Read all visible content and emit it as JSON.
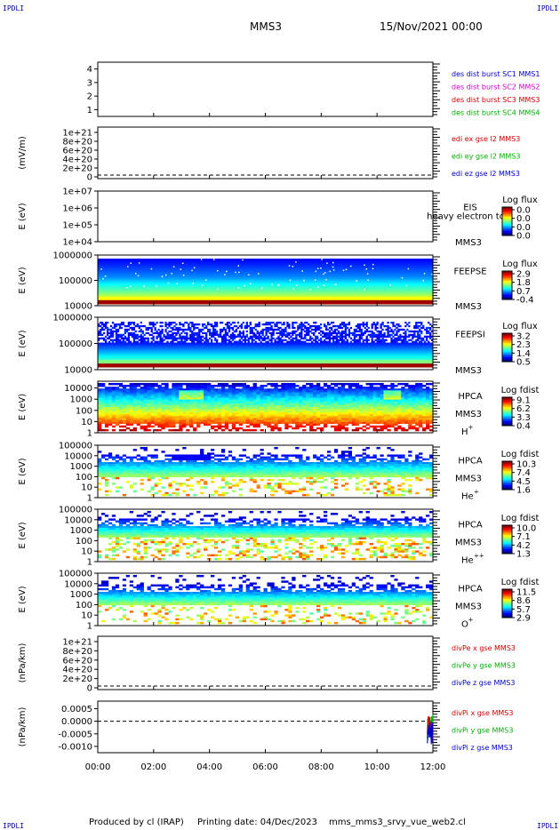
{
  "header": {
    "corner_label": "IPDLI",
    "spacecraft": "MMS3",
    "date": "15/Nov/2021 00:00"
  },
  "footer": {
    "produced_by": "Produced by cl (IRAP)",
    "printing_date": "Printing date: 04/Dec/2023",
    "file": "mms_mms3_srvy_vue_web2.cl"
  },
  "colors": {
    "mms1": "#0000c8",
    "mms2": "#d000d0",
    "mms3": "#d00000",
    "mms4": "#00b000",
    "x": "#d00000",
    "y": "#00b000",
    "z": "#0000c8"
  },
  "chart_data": [
    {
      "type": "line",
      "panel": "mms-indicator",
      "yticks": [
        "4",
        "3",
        "2",
        "1"
      ],
      "ylim": [
        0.5,
        4.5
      ],
      "legend": [
        {
          "text": "des dist burst SC1 MMS1",
          "color": "#0000c8"
        },
        {
          "text": "des dist burst SC2 MMS2",
          "color": "#d000d0"
        },
        {
          "text": "des dist burst SC3 MMS3",
          "color": "#d00000"
        },
        {
          "text": "des dist burst SC4 MMS4",
          "color": "#00b000"
        }
      ]
    },
    {
      "type": "line",
      "panel": "edi-e-field",
      "ylabel": "(mV/m)",
      "yticks": [
        "1e+21",
        "8e+20",
        "6e+20",
        "4e+20",
        "2e+20",
        "0"
      ],
      "ylim": [
        0,
        1e+21
      ],
      "zero_line": true,
      "legend": [
        {
          "text": "edi ex gse l2 MMS3",
          "color": "#d00000"
        },
        {
          "text": "edi ey gse l2 MMS3",
          "color": "#00b000"
        },
        {
          "text": "edi ez gse l2 MMS3",
          "color": "#0000c8"
        }
      ]
    },
    {
      "type": "heatmap",
      "panel": "eis",
      "ylabel": "E (eV)",
      "yticks": [
        "1e+07",
        "1e+06",
        "1e+05",
        "1e+04"
      ],
      "ylim": [
        10000,
        10000000
      ],
      "yscale": "log",
      "instrument": "EIS",
      "spacecraft": "MMS3",
      "overlay": "heavy electron to",
      "colorbar": {
        "title": "Log flux",
        "ticks": [
          "0.0",
          "0.0",
          "0.0",
          "0.0"
        ]
      },
      "pattern": "empty"
    },
    {
      "type": "heatmap",
      "panel": "feeps-electron",
      "ylabel": "E (eV)",
      "yticks": [
        "1000000",
        "100000",
        "10000"
      ],
      "ylim": [
        10000,
        1000000
      ],
      "yscale": "log",
      "instrument": "FEEPSE",
      "spacecraft": "MMS3",
      "colorbar": {
        "title": "Log flux",
        "ticks": [
          "2.9",
          "1.8",
          "0.7",
          "-0.4"
        ]
      },
      "pattern": "feepse"
    },
    {
      "type": "heatmap",
      "panel": "feeps-ion",
      "ylabel": "E (eV)",
      "yticks": [
        "1000000",
        "100000",
        "10000"
      ],
      "ylim": [
        10000,
        1000000
      ],
      "yscale": "log",
      "instrument": "FEEPSI",
      "spacecraft": "MMS3",
      "colorbar": {
        "title": "Log flux",
        "ticks": [
          "3.2",
          "2.3",
          "1.4",
          "0.5"
        ]
      },
      "pattern": "feepsi"
    },
    {
      "type": "heatmap",
      "panel": "hpca-h",
      "ylabel": "E (eV)",
      "yticks": [
        "10000",
        "1000",
        "100",
        "10",
        "1"
      ],
      "ylim": [
        1,
        40000
      ],
      "yscale": "log",
      "instrument": "HPCA",
      "spacecraft": "MMS3",
      "species": "H",
      "charge": "+",
      "colorbar": {
        "title": "Log fdist",
        "ticks": [
          "9.1",
          "6.2",
          "3.3",
          "0.4"
        ]
      },
      "pattern": "hpca_h"
    },
    {
      "type": "heatmap",
      "panel": "hpca-he",
      "ylabel": "E (eV)",
      "yticks": [
        "100000",
        "10000",
        "1000",
        "100",
        "10",
        "1"
      ],
      "ylim": [
        1,
        100000
      ],
      "yscale": "log",
      "instrument": "HPCA",
      "spacecraft": "MMS3",
      "species": "He",
      "charge": "+",
      "colorbar": {
        "title": "Log fdist",
        "ticks": [
          "10.3",
          "7.4",
          "4.5",
          "1.6"
        ]
      },
      "pattern": "hpca_he"
    },
    {
      "type": "heatmap",
      "panel": "hpca-hepp",
      "ylabel": "E (eV)",
      "yticks": [
        "100000",
        "10000",
        "1000",
        "100",
        "10",
        "1"
      ],
      "ylim": [
        1,
        100000
      ],
      "yscale": "log",
      "instrument": "HPCA",
      "spacecraft": "MMS3",
      "species": "He",
      "charge": "++",
      "colorbar": {
        "title": "Log fdist",
        "ticks": [
          "10.0",
          "7.1",
          "4.2",
          "1.3"
        ]
      },
      "pattern": "hpca_hepp"
    },
    {
      "type": "heatmap",
      "panel": "hpca-o",
      "ylabel": "E (eV)",
      "yticks": [
        "100000",
        "10000",
        "1000",
        "100",
        "10",
        "1"
      ],
      "ylim": [
        1,
        100000
      ],
      "yscale": "log",
      "instrument": "HPCA",
      "spacecraft": "MMS3",
      "species": "O",
      "charge": "+",
      "colorbar": {
        "title": "Log fdist",
        "ticks": [
          "11.5",
          "8.6",
          "5.7",
          "2.9"
        ]
      },
      "pattern": "hpca_o"
    },
    {
      "type": "line",
      "panel": "divpe",
      "ylabel": "(nPa/km)",
      "yticks": [
        "1e+21",
        "8e+20",
        "6e+20",
        "4e+20",
        "2e+20",
        "0"
      ],
      "ylim": [
        0,
        1e+21
      ],
      "zero_line": true,
      "legend": [
        {
          "text": "divPe x gse MMS3",
          "color": "#d00000"
        },
        {
          "text": "divPe y gse MMS3",
          "color": "#00b000"
        },
        {
          "text": "divPe z gse MMS3",
          "color": "#0000c8"
        }
      ]
    },
    {
      "type": "line",
      "panel": "divpi",
      "ylabel": "(nPa/km)",
      "yticks": [
        "0.0005",
        "0.0000",
        "-0.0005",
        "-0.0010"
      ],
      "ylim": [
        -0.00125,
        0.0008
      ],
      "zero_line": true,
      "legend": [
        {
          "text": "divPi x gse MMS3",
          "color": "#d00000"
        },
        {
          "text": "divPi y gse MMS3",
          "color": "#00b000"
        },
        {
          "text": "divPi z gse MMS3",
          "color": "#0000c8"
        }
      ],
      "series_end": {
        "x_hours": [
          11.8,
          12.0
        ]
      }
    }
  ],
  "time_axis": {
    "ticks": [
      "00:00",
      "02:00",
      "04:00",
      "06:00",
      "08:00",
      "10:00",
      "12:00"
    ],
    "range_hours": [
      0,
      12
    ]
  }
}
